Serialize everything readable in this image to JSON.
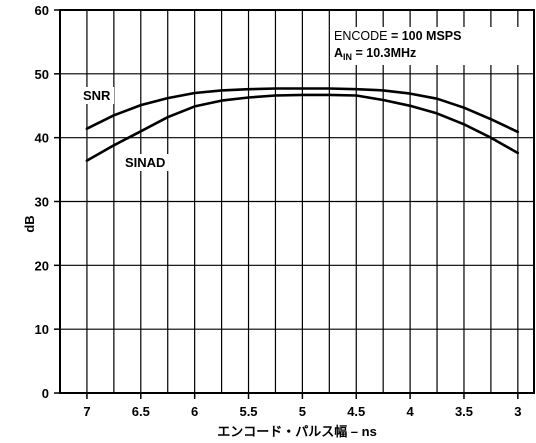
{
  "chart_data": {
    "type": "line",
    "ylabel": "dB",
    "xlabel": "エンコード・パルス幅 – ns",
    "x_ticks": [
      7,
      6.5,
      6,
      5.5,
      5,
      4.5,
      4,
      3.5,
      3
    ],
    "x_tick_labels": [
      "7",
      "6.5",
      "6",
      "5.5",
      "5",
      "4.5",
      "4",
      "3.5",
      "3"
    ],
    "xlim": [
      7.25,
      2.85
    ],
    "x_reversed": true,
    "y_ticks": [
      0,
      10,
      20,
      30,
      40,
      50,
      60
    ],
    "y_tick_labels": [
      "0",
      "10",
      "20",
      "30",
      "40",
      "50",
      "60"
    ],
    "ylim": [
      0,
      60
    ],
    "grid": true,
    "annotation": {
      "line1_prefix": "ENCODE",
      "line1_value": " = 100 MSPS",
      "line2_main": "A",
      "line2_sub": "IN",
      "line2_value": " = 10.3MHz"
    },
    "series": [
      {
        "name": "SNR",
        "x": [
          7,
          6.75,
          6.5,
          6.25,
          6,
          5.75,
          5.5,
          5.25,
          5,
          4.75,
          4.5,
          4.25,
          4,
          3.75,
          3.5,
          3.25,
          3
        ],
        "values": [
          41.4,
          43.5,
          45.1,
          46.2,
          47.0,
          47.4,
          47.6,
          47.7,
          47.7,
          47.7,
          47.6,
          47.4,
          46.9,
          46.1,
          44.7,
          42.9,
          40.9
        ]
      },
      {
        "name": "SINAD",
        "x": [
          7,
          6.75,
          6.5,
          6.25,
          6,
          5.75,
          5.5,
          5.25,
          5,
          4.75,
          4.5,
          4.25,
          4,
          3.75,
          3.5,
          3.25,
          3
        ],
        "values": [
          36.4,
          38.8,
          41.0,
          43.2,
          44.9,
          45.8,
          46.3,
          46.6,
          46.7,
          46.7,
          46.6,
          45.9,
          45.0,
          43.8,
          42.1,
          40.0,
          37.6
        ]
      }
    ],
    "colors": {
      "line": "#000000",
      "grid": "#000000",
      "background": "#ffffff"
    }
  }
}
